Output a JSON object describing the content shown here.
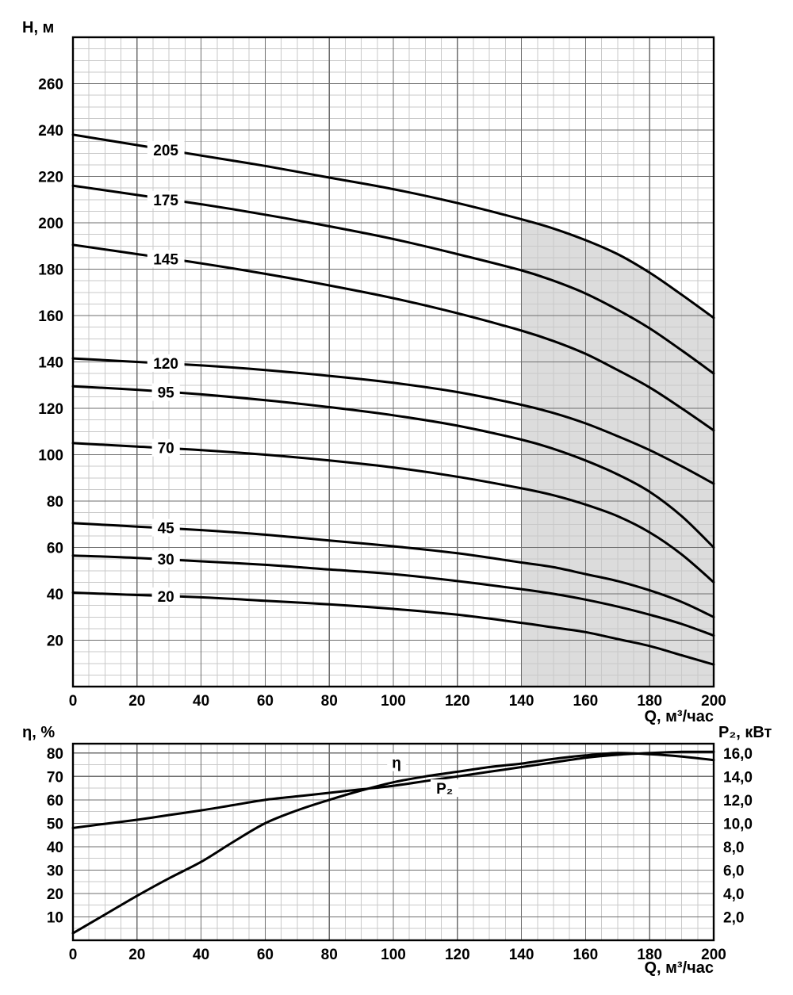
{
  "colors": {
    "background": "#ffffff",
    "curve": "#000000",
    "grid_major": "#6e6e6e",
    "grid_minor": "#c9c9c9",
    "frame": "#000000",
    "shading": "#dcdcdc"
  },
  "chart_data": [
    {
      "type": "line",
      "title": "",
      "xlabel": "Q, м³/час",
      "ylabel": "Н, м",
      "xlim": [
        0,
        200
      ],
      "ylim": [
        0,
        280
      ],
      "x_ticks": [
        0,
        20,
        40,
        60,
        80,
        100,
        120,
        140,
        160,
        180,
        200
      ],
      "y_ticks": [
        20,
        40,
        60,
        80,
        100,
        120,
        140,
        160,
        180,
        200,
        220,
        240,
        260
      ],
      "minor_step_x": 5,
      "minor_step_y": 5,
      "grid": true,
      "shaded_region": {
        "x_from": 140,
        "x_to": 200,
        "fill": "#dcdcdc"
      },
      "x": [
        0,
        20,
        40,
        60,
        80,
        100,
        120,
        140,
        150,
        160,
        170,
        180,
        190,
        200
      ],
      "series": [
        {
          "name": "205",
          "values": [
            238,
            233.5,
            229,
            224.5,
            219.5,
            214.5,
            208.5,
            201.5,
            197.5,
            192.5,
            186.5,
            178.5,
            169,
            159
          ],
          "label_at": [
            29,
            231.5
          ]
        },
        {
          "name": "175",
          "values": [
            216,
            212,
            208,
            203.5,
            198.5,
            193,
            186.5,
            179.5,
            175,
            169.5,
            162.5,
            154.5,
            145,
            135
          ],
          "label_at": [
            29,
            210
          ]
        },
        {
          "name": "145",
          "values": [
            190.5,
            186.5,
            182.5,
            178,
            173,
            167.5,
            161,
            153.5,
            149,
            143.5,
            136.5,
            129,
            120,
            110.5
          ],
          "label_at": [
            29,
            184.5
          ]
        },
        {
          "name": "120",
          "values": [
            141.5,
            140,
            138.5,
            136.5,
            134,
            131,
            127,
            121.5,
            118,
            113.5,
            108,
            102,
            95,
            87.5
          ],
          "label_at": [
            29,
            139.5
          ]
        },
        {
          "name": "95",
          "values": [
            129.5,
            128,
            126,
            123.5,
            120.5,
            117,
            112.5,
            106.5,
            102.5,
            97.5,
            91.5,
            84,
            73.5,
            60
          ],
          "label_at": [
            29,
            127
          ]
        },
        {
          "name": "70",
          "values": [
            105,
            103.5,
            102,
            100,
            97.5,
            94.5,
            90.5,
            85.5,
            82.5,
            78.5,
            73.5,
            66.5,
            57,
            45
          ],
          "label_at": [
            29,
            103
          ]
        },
        {
          "name": "45",
          "values": [
            70.5,
            69,
            67.5,
            65.5,
            63,
            60.5,
            57.5,
            53.5,
            51.5,
            48.5,
            45.5,
            41.5,
            36.5,
            30
          ],
          "label_at": [
            29,
            68.5
          ]
        },
        {
          "name": "30",
          "values": [
            56.5,
            55.5,
            54,
            52.5,
            50.5,
            48.5,
            45.5,
            42,
            40,
            37.5,
            34.5,
            31,
            27,
            22
          ],
          "label_at": [
            29,
            55
          ]
        },
        {
          "name": "20",
          "values": [
            40.5,
            39.5,
            38.5,
            37,
            35.5,
            33.5,
            31,
            27.5,
            25.5,
            23.5,
            20.5,
            17.5,
            13.5,
            9.5
          ],
          "label_at": [
            29,
            39
          ]
        }
      ]
    },
    {
      "type": "line",
      "title": "",
      "xlabel": "Q, м³/час",
      "ylabel_left": "η, %",
      "ylabel_right": "P₂, кВт",
      "xlim": [
        0,
        200
      ],
      "ylim_left": [
        0,
        84
      ],
      "ylim_right": [
        0,
        16.8
      ],
      "x_ticks": [
        0,
        20,
        40,
        60,
        80,
        100,
        120,
        140,
        160,
        180,
        200
      ],
      "left_ticks": [
        10,
        20,
        30,
        40,
        50,
        60,
        70,
        80
      ],
      "right_ticks": [
        {
          "text": "2,0",
          "value": 2
        },
        {
          "text": "4,0",
          "value": 4
        },
        {
          "text": "6,0",
          "value": 6
        },
        {
          "text": "8,0",
          "value": 8
        },
        {
          "text": "10,0",
          "value": 10
        },
        {
          "text": "12,0",
          "value": 12
        },
        {
          "text": "14,0",
          "value": 14
        },
        {
          "text": "16,0",
          "value": 16
        }
      ],
      "minor_step_x": 5,
      "minor_step_y": 5,
      "grid": true,
      "x": [
        0,
        10,
        20,
        30,
        40,
        50,
        60,
        70,
        80,
        90,
        100,
        110,
        120,
        130,
        140,
        150,
        160,
        170,
        180,
        190,
        200
      ],
      "series": [
        {
          "name": "η",
          "axis": "left",
          "values": [
            3,
            11,
            19,
            26.5,
            33.5,
            42,
            50,
            55.5,
            60,
            64,
            67.5,
            70,
            72,
            74,
            75.5,
            77.5,
            79,
            80,
            79.5,
            78.5,
            77
          ],
          "label_at": [
            101,
            76
          ]
        },
        {
          "name": "P₂",
          "axis": "right",
          "values": [
            9.6,
            9.95,
            10.3,
            10.7,
            11.1,
            11.55,
            12.0,
            12.3,
            12.6,
            12.9,
            13.2,
            13.6,
            14.0,
            14.4,
            14.8,
            15.2,
            15.6,
            15.85,
            16.0,
            16.1,
            16.1
          ],
          "label_at": [
            116,
            65
          ]
        }
      ]
    }
  ]
}
